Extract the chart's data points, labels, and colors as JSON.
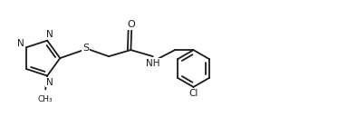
{
  "background_color": "#ffffff",
  "line_color": "#1a1a1a",
  "line_width": 1.3,
  "font_size": 7.5,
  "figsize": [
    3.94,
    1.4
  ],
  "dpi": 100,
  "xlim": [
    0,
    10
  ],
  "ylim": [
    0,
    2.8
  ]
}
